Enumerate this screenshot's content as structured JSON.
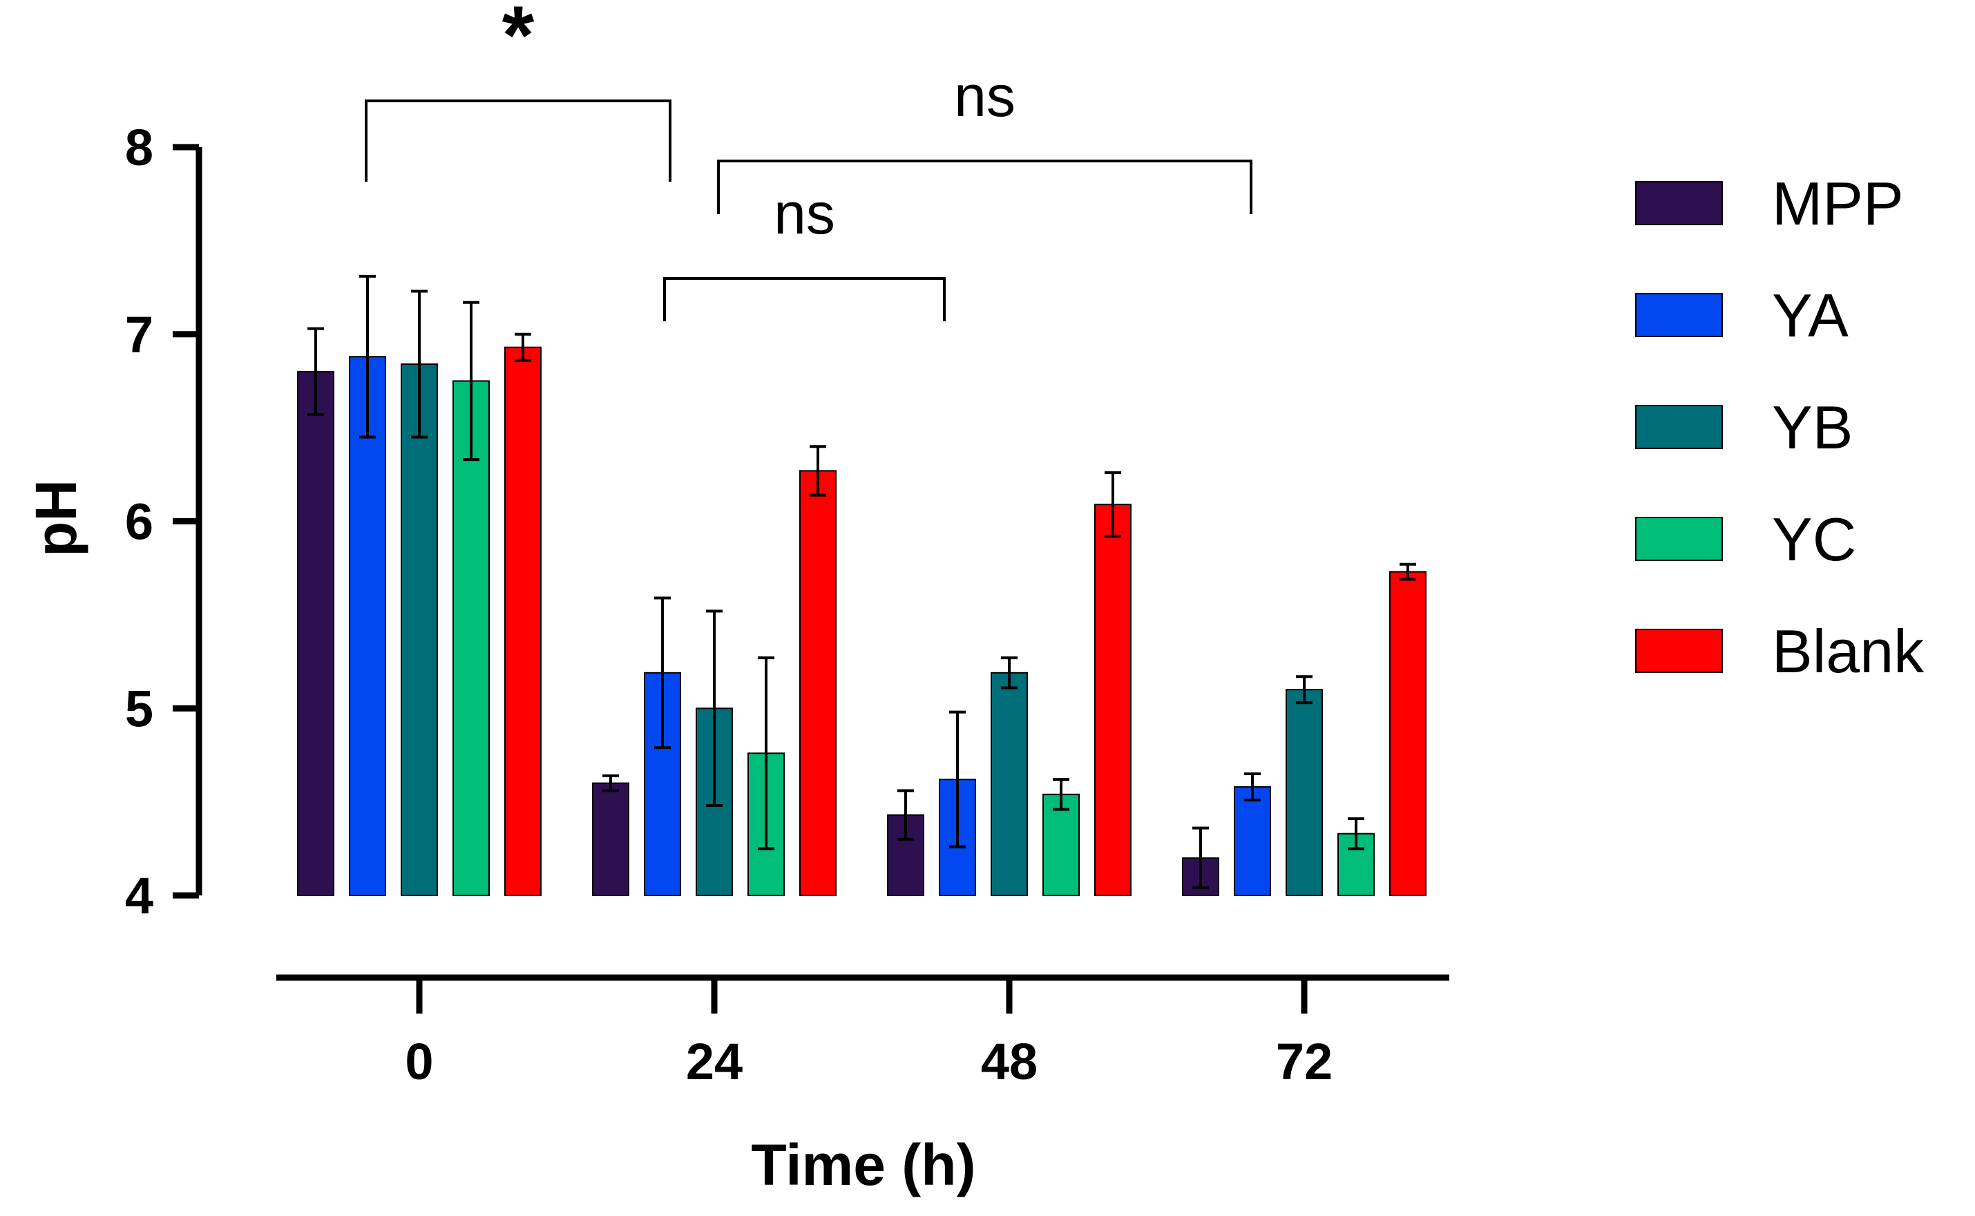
{
  "chart_data": {
    "type": "bar",
    "title": "",
    "xlabel": "Time (h)",
    "ylabel": "pH",
    "ylim": [
      4,
      8
    ],
    "yticks": [
      "4",
      "5",
      "6",
      "7",
      "8"
    ],
    "categories": [
      "0",
      "24",
      "48",
      "72"
    ],
    "series": [
      {
        "name": "MPP",
        "color": "#2e0f50",
        "values": [
          6.8,
          4.6,
          4.43,
          4.2
        ],
        "errors": [
          0.23,
          0.04,
          0.13,
          0.16
        ]
      },
      {
        "name": "YA",
        "color": "#0347f0",
        "values": [
          6.88,
          5.19,
          4.62,
          4.58
        ],
        "errors": [
          0.43,
          0.4,
          0.36,
          0.07
        ]
      },
      {
        "name": "YB",
        "color": "#006e78",
        "values": [
          6.84,
          5.0,
          5.19,
          5.1
        ],
        "errors": [
          0.39,
          0.52,
          0.08,
          0.07
        ]
      },
      {
        "name": "YC",
        "color": "#00be7a",
        "values": [
          6.75,
          4.76,
          4.54,
          4.33
        ],
        "errors": [
          0.42,
          0.51,
          0.08,
          0.08
        ]
      },
      {
        "name": "Blank",
        "color": "#fe0000",
        "values": [
          6.93,
          6.27,
          6.09,
          5.73
        ],
        "errors": [
          0.07,
          0.13,
          0.17,
          0.04
        ]
      }
    ],
    "annotations": [
      {
        "text": "*",
        "from": "0",
        "to": "24"
      },
      {
        "text": "ns",
        "from": "24",
        "to": "72"
      },
      {
        "text": "ns",
        "from": "24",
        "to": "48"
      }
    ]
  }
}
